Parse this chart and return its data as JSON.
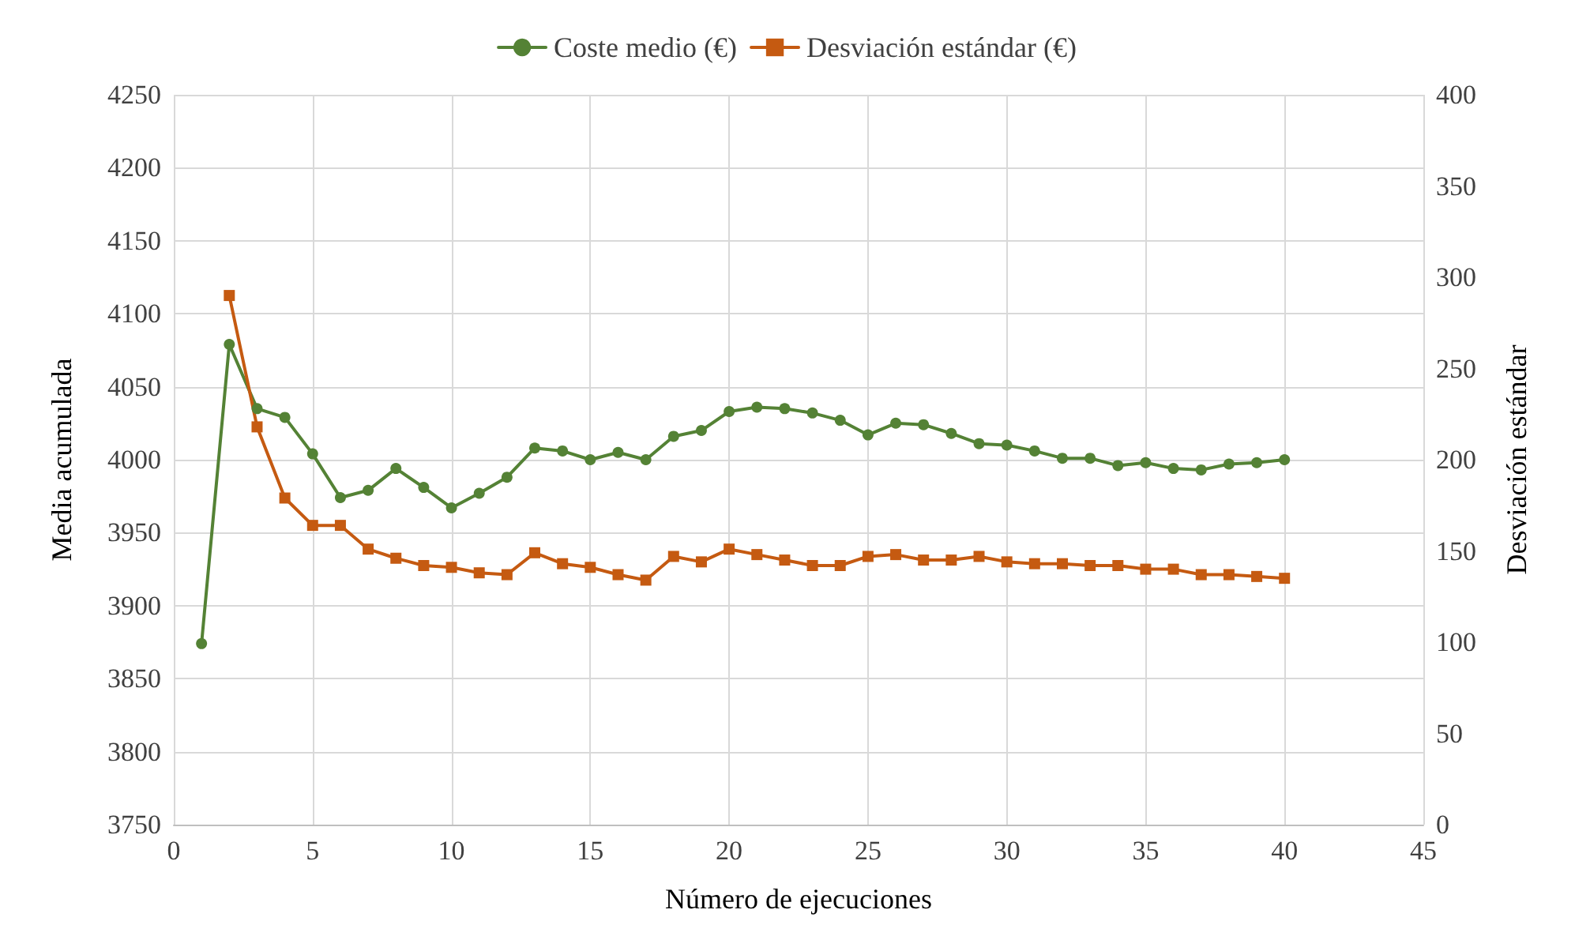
{
  "chart_data": {
    "type": "line",
    "xlabel": "Número de ejecuciones",
    "ylabel": "Media acumulada",
    "y2label": "Desviación estándar",
    "x": [
      1,
      2,
      3,
      4,
      5,
      6,
      7,
      8,
      9,
      10,
      11,
      12,
      13,
      14,
      15,
      16,
      17,
      18,
      19,
      20,
      21,
      22,
      23,
      24,
      25,
      26,
      27,
      28,
      29,
      30,
      31,
      32,
      33,
      34,
      35,
      36,
      37,
      38,
      39,
      40
    ],
    "series": [
      {
        "name": "Coste medio (€)",
        "color": "#548235",
        "marker": "circle",
        "values": [
          3874,
          4079,
          4035,
          4029,
          4004,
          3974,
          3979,
          3994,
          3981,
          3967,
          3977,
          3988,
          4008,
          4006,
          4000,
          4005,
          4000,
          4016,
          4020,
          4033,
          4036,
          4035,
          4032,
          4027,
          4017,
          4025,
          4024,
          4018,
          4011,
          4010,
          4006,
          4001,
          4001,
          3996,
          3998,
          3994,
          3993,
          3997,
          3998,
          4000
        ]
      },
      {
        "name": "Desviación estándar (€)",
        "color": "#c55a11",
        "marker": "square",
        "axis": "y2",
        "values": [
          null,
          290,
          218,
          179,
          164,
          164,
          151,
          146,
          142,
          141,
          138,
          137,
          149,
          143,
          141,
          137,
          134,
          147,
          144,
          151,
          148,
          145,
          142,
          142,
          147,
          148,
          145,
          145,
          147,
          144,
          143,
          143,
          142,
          142,
          140,
          140,
          137,
          137,
          136,
          135
        ]
      }
    ],
    "xlim": [
      0,
      45
    ],
    "xticks": [
      0,
      5,
      10,
      15,
      20,
      25,
      30,
      35,
      40,
      45
    ],
    "ylim": [
      3750,
      4250
    ],
    "yticks": [
      3750,
      3800,
      3850,
      3900,
      3950,
      4000,
      4050,
      4100,
      4150,
      4200,
      4250
    ],
    "y2lim": [
      0,
      400
    ],
    "y2ticks": [
      0,
      50,
      100,
      150,
      200,
      250,
      300,
      350,
      400
    ],
    "grid": true,
    "legend": "top",
    "line_style": "solid"
  }
}
